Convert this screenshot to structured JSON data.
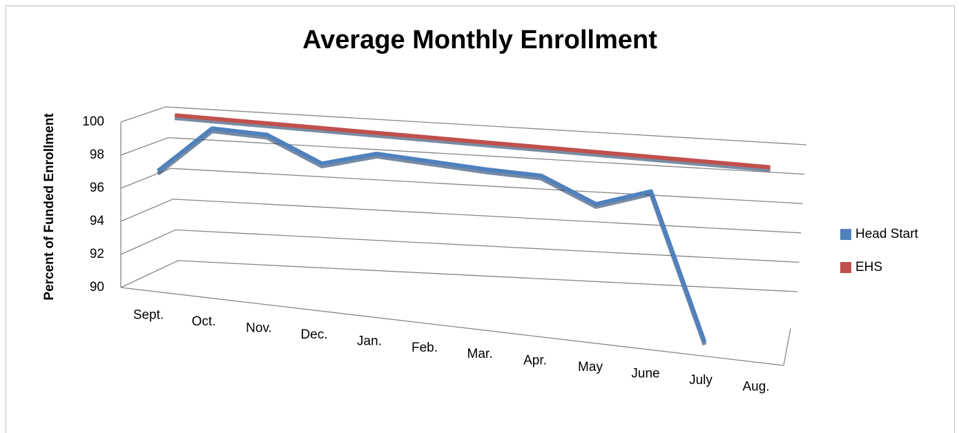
{
  "chart_data": {
    "type": "line3d",
    "title": "Average Monthly Enrollment",
    "y_label": "Percent of Funded Enrollment",
    "categories": [
      "Sept.",
      "Oct.",
      "Nov.",
      "Dec.",
      "Jan.",
      "Feb.",
      "Mar.",
      "Apr.",
      "May",
      "June",
      "July",
      "Aug."
    ],
    "series": [
      {
        "name": "Head Start",
        "color": "#4f81bd",
        "values": [
          97,
          100,
          100,
          98.6,
          99.6,
          99.5,
          99.4,
          99.4,
          98,
          99.2,
          90,
          null
        ]
      },
      {
        "name": "EHS",
        "color": "#c0504d",
        "values": [
          100,
          100,
          100,
          100,
          100,
          100,
          100,
          100,
          100,
          100,
          100,
          100
        ]
      }
    ],
    "ylim": [
      90,
      100
    ],
    "yticks": [
      90,
      92,
      94,
      96,
      98,
      100
    ],
    "grid": true,
    "legend": "right"
  }
}
